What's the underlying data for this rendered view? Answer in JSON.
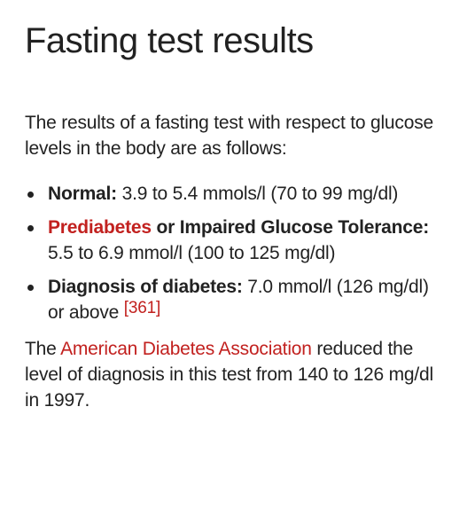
{
  "heading": "Fasting test results",
  "intro": "The results of a fasting test with respect to glucose levels in the body are as follows:",
  "items": [
    {
      "term": "Normal:",
      "text": " 3.9 to 5.4 mmols/l (70 to 99 mg/dl)"
    },
    {
      "link_term": "Prediabetes",
      "term_rest": " or Impaired Glucose Tolerance:",
      "text": " 5.5 to 6.9 mmol/l (100 to 125 mg/dl)"
    },
    {
      "term": "Diagnosis of diabetes:",
      "text": " 7.0 mmol/l (126 mg/dl) or above",
      "citation": "[361]"
    }
  ],
  "outro": {
    "before": "The ",
    "link": "American Diabetes Association",
    "after": " reduced the level of diagnosis in this test from 140 to 126 mg/dl in 1997."
  },
  "colors": {
    "text": "#222222",
    "link": "#c2211f",
    "background": "#ffffff"
  }
}
